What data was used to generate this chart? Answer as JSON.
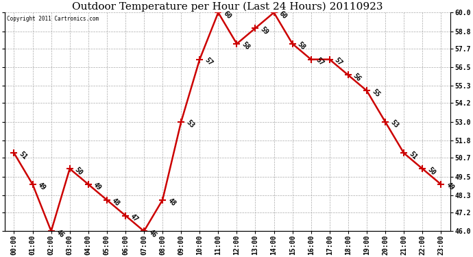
{
  "title": "Outdoor Temperature per Hour (Last 24 Hours) 20110923",
  "copyright_text": "Copyright 2011 Cartronics.com",
  "hours": [
    "00:00",
    "01:00",
    "02:00",
    "03:00",
    "04:00",
    "05:00",
    "06:00",
    "07:00",
    "08:00",
    "09:00",
    "10:00",
    "11:00",
    "12:00",
    "13:00",
    "14:00",
    "15:00",
    "16:00",
    "17:00",
    "18:00",
    "19:00",
    "20:00",
    "21:00",
    "22:00",
    "23:00"
  ],
  "temperatures": [
    51,
    49,
    46,
    50,
    49,
    48,
    47,
    46,
    48,
    53,
    57,
    60,
    58,
    59,
    60,
    58,
    57,
    57,
    56,
    55,
    53,
    51,
    50,
    49
  ],
  "line_color": "#cc0000",
  "marker": "+",
  "marker_color": "#cc0000",
  "marker_size": 7,
  "marker_linewidth": 1.5,
  "background_color": "#ffffff",
  "grid_color": "#aaaaaa",
  "ylim": [
    46.0,
    60.0
  ],
  "yticks": [
    46.0,
    47.2,
    48.3,
    49.5,
    50.7,
    51.8,
    53.0,
    54.2,
    55.3,
    56.5,
    57.7,
    58.8,
    60.0
  ],
  "label_fontsize": 7,
  "title_fontsize": 11,
  "annotation_fontsize": 7,
  "line_width": 1.8
}
